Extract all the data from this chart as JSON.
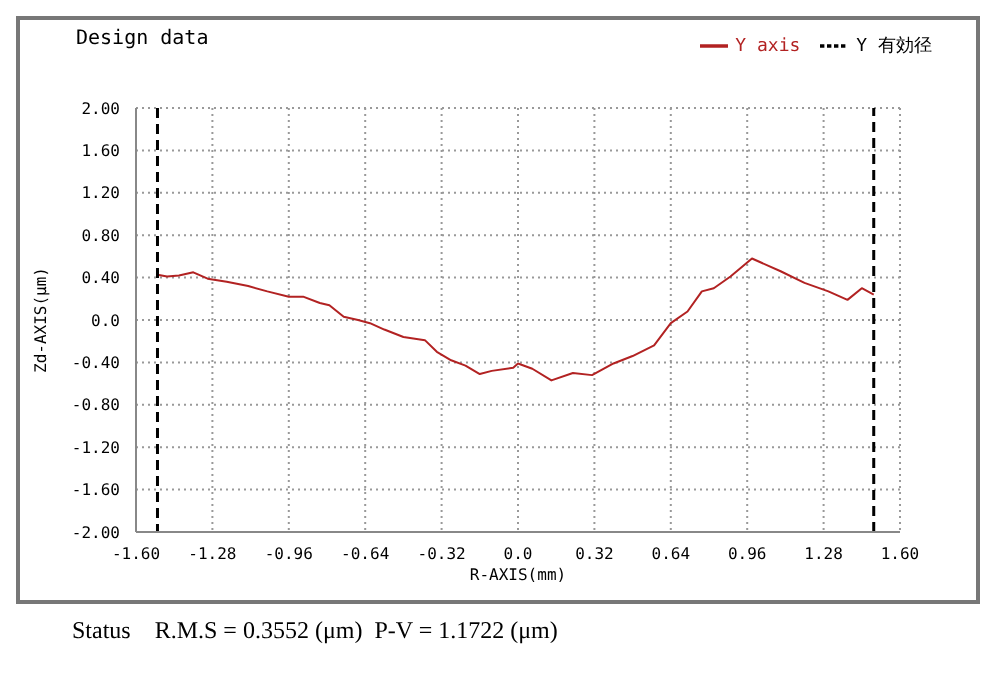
{
  "chart_data": {
    "type": "line",
    "title": "Design data",
    "xlabel": "R-AXIS(mm)",
    "ylabel": "Zd-AXIS(μm)",
    "xlim": [
      -1.6,
      1.6
    ],
    "ylim": [
      -2,
      2
    ],
    "xticks": [
      {
        "value": -1.6,
        "label": "-1.60"
      },
      {
        "value": -1.28,
        "label": "-1.28"
      },
      {
        "value": -0.96,
        "label": "-0.96"
      },
      {
        "value": -0.64,
        "label": "-0.64"
      },
      {
        "value": -0.32,
        "label": "-0.32"
      },
      {
        "value": 0,
        "label": "0.0"
      },
      {
        "value": 0.32,
        "label": "0.32"
      },
      {
        "value": 0.64,
        "label": "0.64"
      },
      {
        "value": 0.96,
        "label": "0.96"
      },
      {
        "value": 1.28,
        "label": "1.28"
      },
      {
        "value": 1.6,
        "label": "1.60"
      }
    ],
    "yticks": [
      {
        "value": -2,
        "label": "-2.00"
      },
      {
        "value": -1.6,
        "label": "-1.60"
      },
      {
        "value": -1.2,
        "label": "-1.20"
      },
      {
        "value": -0.8,
        "label": "-0.80"
      },
      {
        "value": -0.4,
        "label": "-0.40"
      },
      {
        "value": 0,
        "label": "0.0"
      },
      {
        "value": 0.4,
        "label": "0.40"
      },
      {
        "value": 0.8,
        "label": "0.80"
      },
      {
        "value": 1.2,
        "label": "1.20"
      },
      {
        "value": 1.6,
        "label": "1.60"
      },
      {
        "value": 2,
        "label": "2.00"
      }
    ],
    "grid": true,
    "legend": "top right",
    "marker": "none",
    "series": [
      {
        "name": "Y axis",
        "color": "#b22222",
        "line_style": "solid",
        "x": [
          -1.515,
          -1.47,
          -1.42,
          -1.36,
          -1.3,
          -1.22,
          -1.13,
          -1.05,
          -0.96,
          -0.9,
          -0.83,
          -0.79,
          -0.73,
          -0.67,
          -0.62,
          -0.56,
          -0.48,
          -0.39,
          -0.34,
          -0.28,
          -0.22,
          -0.16,
          -0.11,
          -0.02,
          0.0,
          0.06,
          0.14,
          0.23,
          0.31,
          0.4,
          0.48,
          0.57,
          0.64,
          0.71,
          0.77,
          0.82,
          0.89,
          0.98,
          1.02,
          1.1,
          1.2,
          1.3,
          1.38,
          1.44,
          1.49
        ],
        "values": [
          0.43,
          0.41,
          0.42,
          0.45,
          0.39,
          0.36,
          0.32,
          0.27,
          0.22,
          0.22,
          0.16,
          0.14,
          0.03,
          0.0,
          -0.03,
          -0.09,
          -0.16,
          -0.19,
          -0.3,
          -0.38,
          -0.43,
          -0.51,
          -0.48,
          -0.45,
          -0.41,
          -0.46,
          -0.57,
          -0.5,
          -0.52,
          -0.41,
          -0.34,
          -0.24,
          -0.03,
          0.08,
          0.27,
          0.3,
          0.41,
          0.58,
          0.54,
          0.46,
          0.35,
          0.27,
          0.19,
          0.3,
          0.24
        ]
      },
      {
        "name": "Y 有効径",
        "color": "#000000",
        "line_style": "dashed",
        "x": [
          -1.51,
          -1.51,
          0,
          1.49,
          1.49
        ],
        "values": [
          2,
          -2,
          null,
          -2,
          2
        ]
      }
    ],
    "annotations": [
      "Status    R.M.S = 0.3552 (μm)  P-V = 1.1722 (μm)"
    ]
  }
}
